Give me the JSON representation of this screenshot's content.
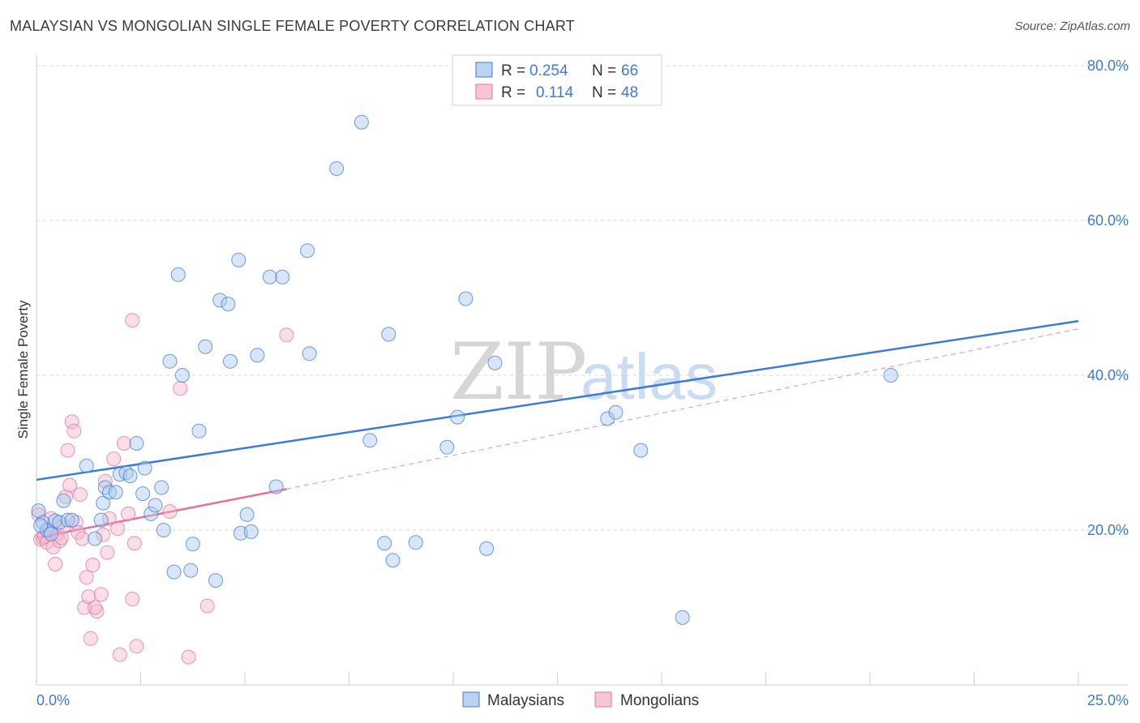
{
  "title": "MALAYSIAN VS MONGOLIAN SINGLE FEMALE POVERTY CORRELATION CHART",
  "source": "Source: ZipAtlas.com",
  "watermark": {
    "zip": "ZIP",
    "atlas": "atlas"
  },
  "colors": {
    "blue": "#3d7bd8",
    "blue_fill": "#a8c8ee",
    "pink": "#e8709a",
    "pink_fill": "#f5b8cc",
    "grid": "#d8d8d8",
    "axis_label": "#3d7bd8"
  },
  "legend": {
    "rows": [
      {
        "r_label": "R =",
        "r_value": "0.254",
        "n_label": "N =",
        "n_value": "66"
      },
      {
        "r_label": "R =",
        "r_value": "0.114",
        "n_label": "N =",
        "n_value": "48"
      }
    ]
  },
  "bottom_legend": [
    "Malaysians",
    "Mongolians"
  ],
  "chart_data": {
    "type": "scatter",
    "title": "MALAYSIAN VS MONGOLIAN SINGLE FEMALE POVERTY CORRELATION CHART",
    "xlabel": "",
    "ylabel": "Single Female Poverty",
    "xlim": [
      0,
      25
    ],
    "ylim": [
      0,
      80
    ],
    "x_tick_labels": [
      "0.0%",
      "25.0%"
    ],
    "y_ticks": [
      20,
      40,
      60,
      80
    ],
    "y_tick_labels": [
      "20.0%",
      "40.0%",
      "60.0%",
      "80.0%"
    ],
    "grid": true,
    "legend_position": "top-center",
    "series": [
      {
        "name": "Malaysians",
        "r": 0.254,
        "n": 66,
        "trend": {
          "x0": 0,
          "y0": 26.5,
          "x1": 25,
          "y1": 47.0
        },
        "points": [
          [
            0.15,
            21.0
          ],
          [
            0.25,
            20.0
          ],
          [
            0.35,
            19.5
          ],
          [
            0.45,
            21.2
          ],
          [
            0.55,
            21.0
          ],
          [
            0.65,
            23.8
          ],
          [
            0.75,
            21.3
          ],
          [
            0.85,
            21.3
          ],
          [
            1.2,
            28.3
          ],
          [
            1.4,
            18.9
          ],
          [
            1.55,
            21.3
          ],
          [
            1.6,
            23.5
          ],
          [
            1.65,
            25.5
          ],
          [
            1.75,
            24.9
          ],
          [
            1.9,
            24.9
          ],
          [
            2.0,
            27.2
          ],
          [
            2.15,
            27.4
          ],
          [
            2.25,
            27.0
          ],
          [
            2.4,
            31.2
          ],
          [
            2.55,
            24.7
          ],
          [
            2.6,
            28.0
          ],
          [
            2.75,
            22.1
          ],
          [
            2.85,
            23.2
          ],
          [
            3.0,
            25.5
          ],
          [
            3.05,
            20.0
          ],
          [
            3.2,
            41.8
          ],
          [
            3.3,
            14.6
          ],
          [
            3.4,
            53.0
          ],
          [
            3.5,
            40.0
          ],
          [
            3.7,
            14.8
          ],
          [
            3.75,
            18.2
          ],
          [
            3.9,
            32.8
          ],
          [
            4.05,
            43.7
          ],
          [
            4.3,
            13.5
          ],
          [
            4.4,
            49.7
          ],
          [
            4.6,
            49.2
          ],
          [
            4.65,
            41.8
          ],
          [
            4.85,
            54.9
          ],
          [
            4.9,
            19.6
          ],
          [
            5.05,
            22.0
          ],
          [
            5.15,
            19.8
          ],
          [
            5.3,
            42.6
          ],
          [
            5.6,
            52.7
          ],
          [
            5.75,
            25.6
          ],
          [
            5.9,
            52.7
          ],
          [
            6.5,
            56.1
          ],
          [
            6.55,
            42.8
          ],
          [
            7.2,
            66.7
          ],
          [
            7.8,
            72.7
          ],
          [
            8.0,
            31.6
          ],
          [
            8.35,
            18.3
          ],
          [
            8.45,
            45.3
          ],
          [
            8.55,
            16.1
          ],
          [
            9.1,
            18.4
          ],
          [
            9.85,
            30.7
          ],
          [
            10.1,
            34.6
          ],
          [
            10.3,
            49.9
          ],
          [
            10.8,
            17.6
          ],
          [
            11.0,
            41.6
          ],
          [
            13.7,
            34.4
          ],
          [
            13.9,
            35.2
          ],
          [
            14.5,
            30.3
          ],
          [
            15.5,
            8.7
          ],
          [
            20.5,
            40.0
          ],
          [
            0.05,
            22.5
          ],
          [
            0.1,
            20.6
          ]
        ]
      },
      {
        "name": "Mongolians",
        "r": 0.114,
        "n": 48,
        "trend": {
          "x0": 0,
          "y0": 19.0,
          "x1": 6.0,
          "y1": 25.3
        },
        "trend_extension": {
          "x0": 6.0,
          "y0": 25.3,
          "x1": 25,
          "y1": 46.0
        },
        "points": [
          [
            0.05,
            22.0
          ],
          [
            0.1,
            18.8
          ],
          [
            0.15,
            19.0
          ],
          [
            0.2,
            19.2
          ],
          [
            0.25,
            18.4
          ],
          [
            0.3,
            20.0
          ],
          [
            0.35,
            21.5
          ],
          [
            0.4,
            17.8
          ],
          [
            0.45,
            15.6
          ],
          [
            0.5,
            19.5
          ],
          [
            0.55,
            18.6
          ],
          [
            0.6,
            19.0
          ],
          [
            0.65,
            20.5
          ],
          [
            0.7,
            24.3
          ],
          [
            0.75,
            30.3
          ],
          [
            0.8,
            25.8
          ],
          [
            0.85,
            34.0
          ],
          [
            0.9,
            32.8
          ],
          [
            0.95,
            21.0
          ],
          [
            1.0,
            19.7
          ],
          [
            1.05,
            24.6
          ],
          [
            1.1,
            18.9
          ],
          [
            1.15,
            10.0
          ],
          [
            1.2,
            13.9
          ],
          [
            1.25,
            11.4
          ],
          [
            1.3,
            6.0
          ],
          [
            1.35,
            15.5
          ],
          [
            1.45,
            9.5
          ],
          [
            1.55,
            11.7
          ],
          [
            1.6,
            19.4
          ],
          [
            1.65,
            26.3
          ],
          [
            1.7,
            17.1
          ],
          [
            1.75,
            21.5
          ],
          [
            1.85,
            29.2
          ],
          [
            1.95,
            20.2
          ],
          [
            2.0,
            3.9
          ],
          [
            2.1,
            31.2
          ],
          [
            2.2,
            22.1
          ],
          [
            2.3,
            11.1
          ],
          [
            2.35,
            18.3
          ],
          [
            2.4,
            5.0
          ],
          [
            2.3,
            47.1
          ],
          [
            3.2,
            22.4
          ],
          [
            3.45,
            38.3
          ],
          [
            3.65,
            3.6
          ],
          [
            4.1,
            10.2
          ],
          [
            6.0,
            45.2
          ],
          [
            1.4,
            10.0
          ]
        ]
      }
    ]
  }
}
